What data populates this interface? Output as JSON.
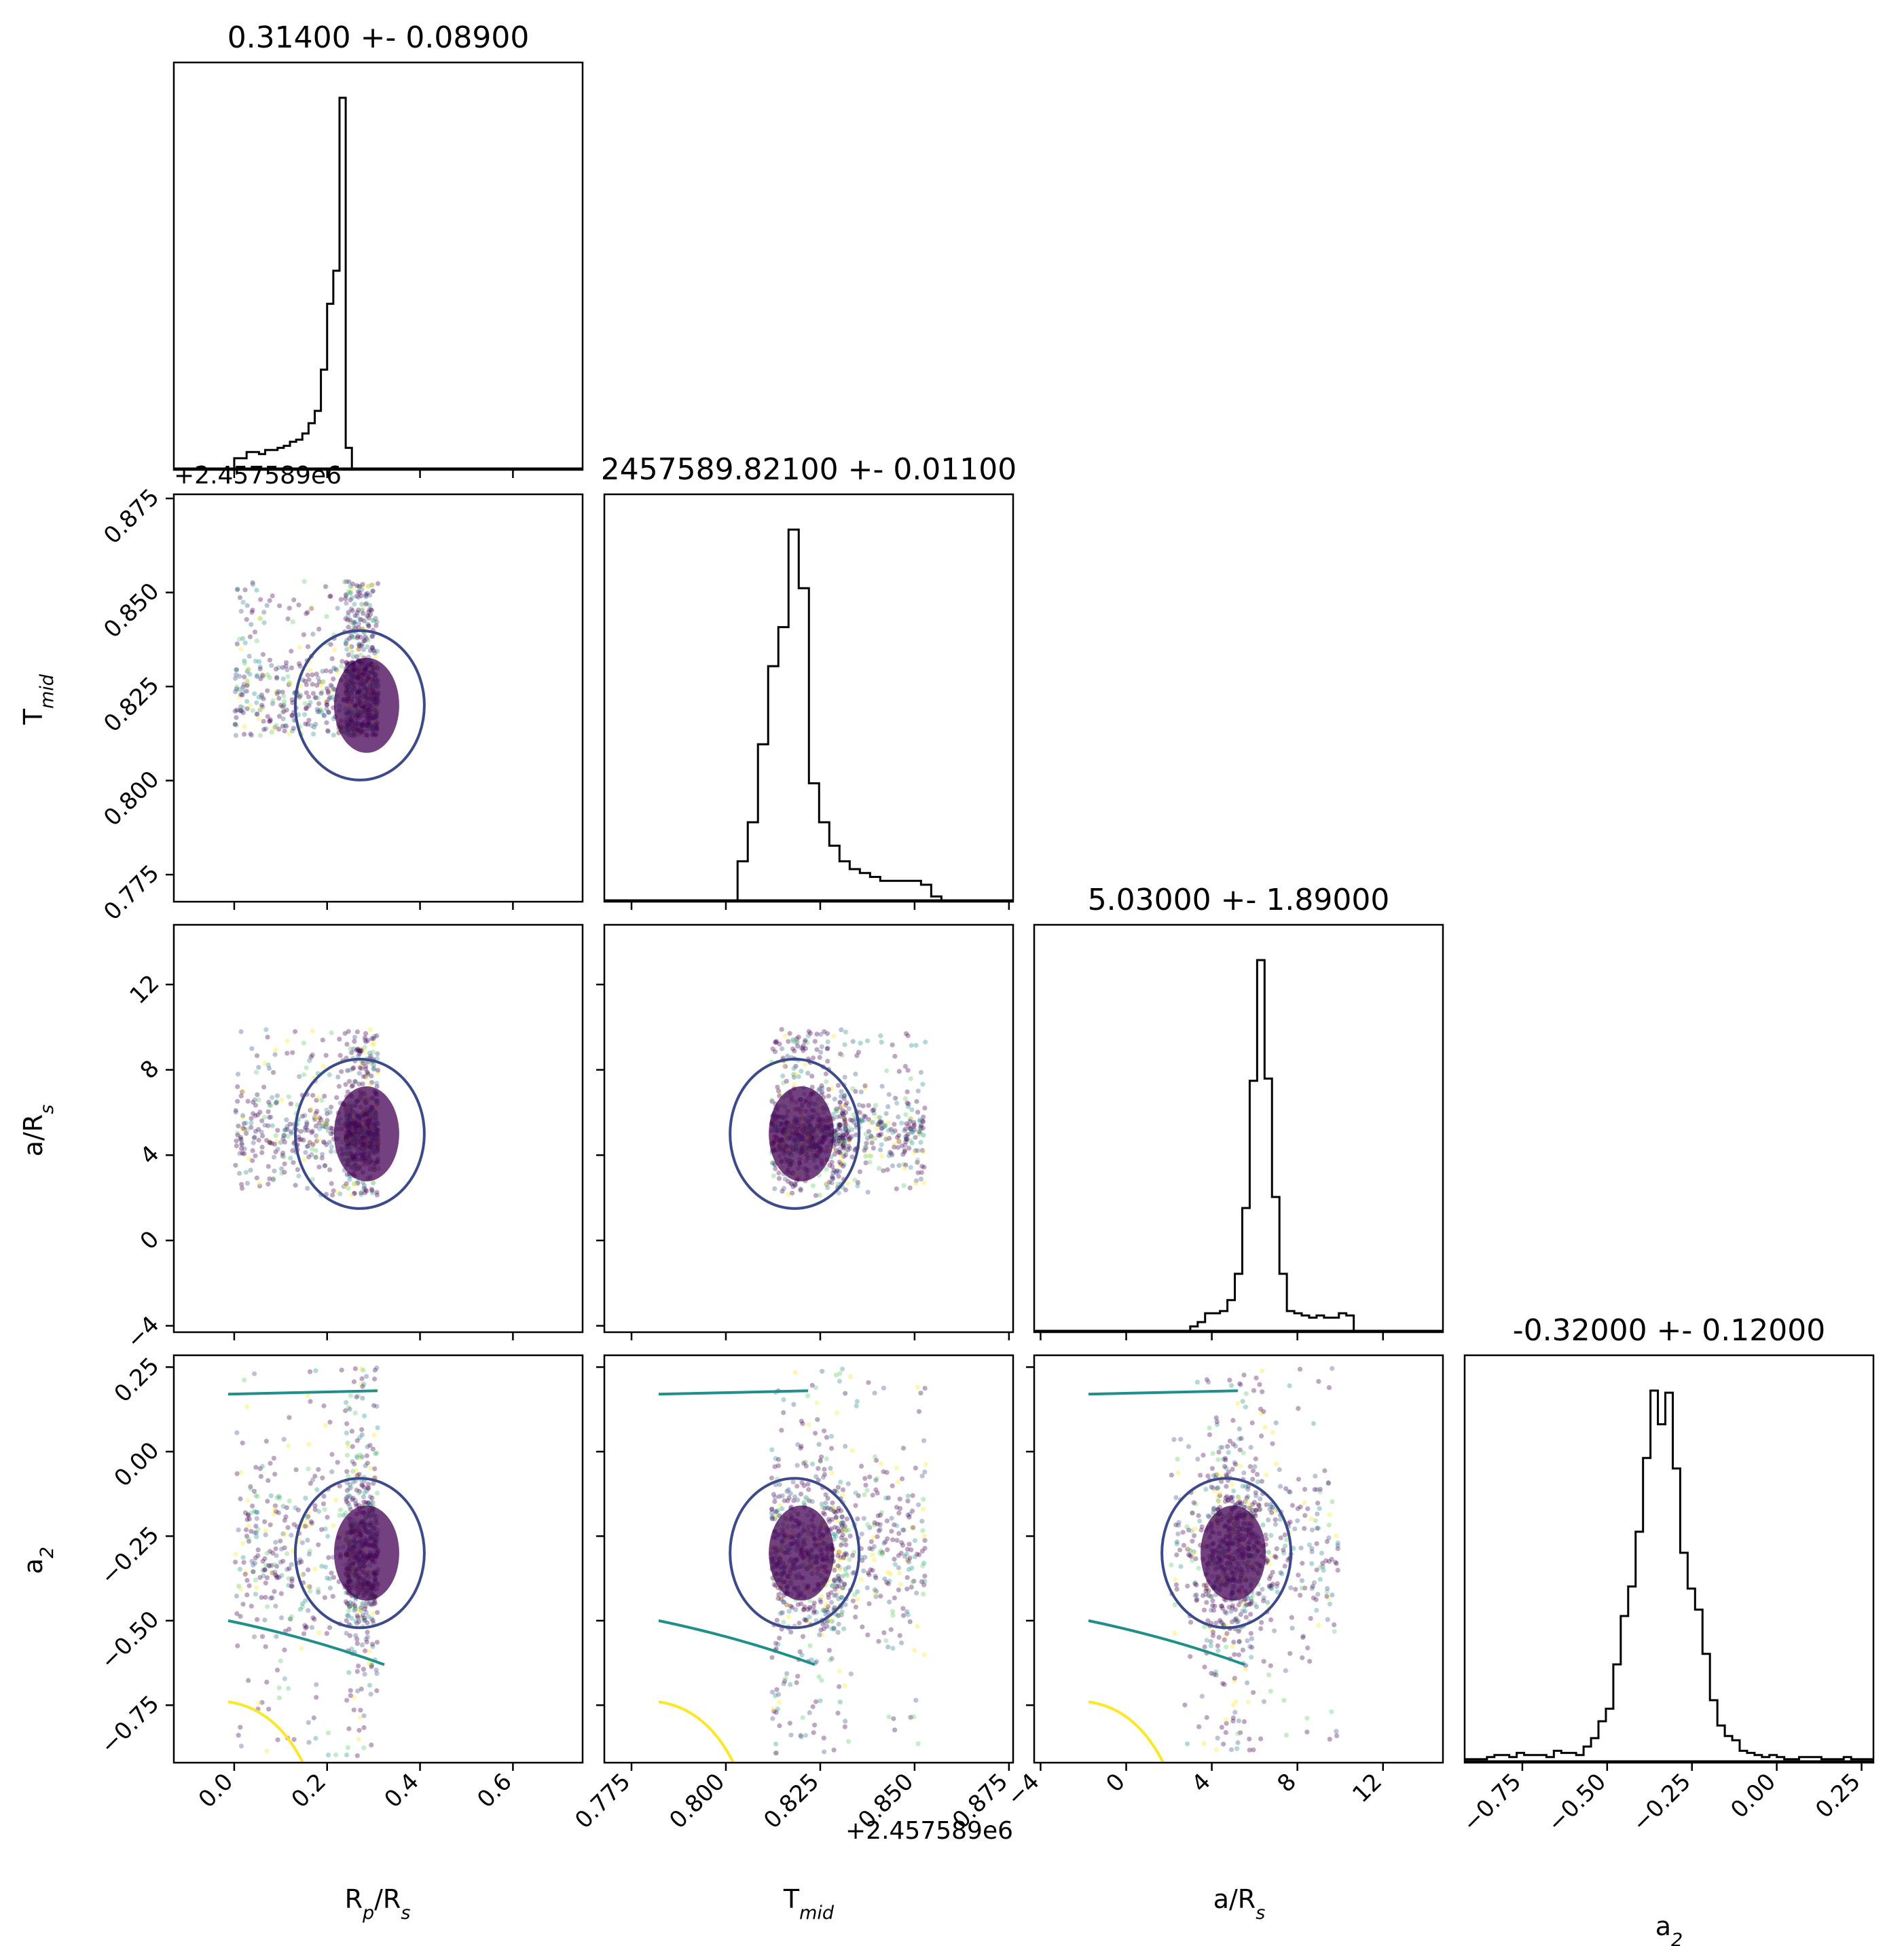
{
  "chart_data": {
    "type": "corner",
    "parameters": [
      {
        "key": "rp",
        "label": "R_p/R_s",
        "title": "0.31400 +- 0.08900",
        "lim": [
          -0.13,
          0.75
        ],
        "ticks": [
          0.0,
          0.2,
          0.4,
          0.6
        ],
        "tick_labels": [
          "0.0",
          "0.2",
          "0.4",
          "0.6"
        ],
        "offset": ""
      },
      {
        "key": "tmid",
        "label": "T_mid",
        "title": "2457589.82100 +- 0.01100",
        "lim": [
          0.7678,
          0.8761
        ],
        "ticks": [
          0.775,
          0.8,
          0.825,
          0.85,
          0.875
        ],
        "tick_labels": [
          "0.775",
          "0.800",
          "0.825",
          "0.850",
          "0.875"
        ],
        "offset": "+2.457589e6"
      },
      {
        "key": "ars",
        "label": "a/R_s",
        "title": "5.03000 +- 1.89000",
        "lim": [
          -4.3,
          14.8
        ],
        "ticks": [
          -4,
          0,
          4,
          8,
          12
        ],
        "tick_labels": [
          "−4",
          "0",
          "4",
          "8",
          "12"
        ],
        "offset": ""
      },
      {
        "key": "a2",
        "label": "a_2",
        "title": "-0.32000 +- 0.12000",
        "lim": [
          -0.92,
          0.285
        ],
        "ticks": [
          -0.75,
          -0.5,
          -0.25,
          0.0,
          0.25
        ],
        "tick_labels": [
          "−0.75",
          "−0.50",
          "−0.25",
          "0.00",
          "0.25"
        ],
        "offset": ""
      }
    ],
    "histograms": [
      {
        "param": "rp",
        "x_range": [
          0.0,
          0.72
        ],
        "bins": 54,
        "counts": [
          5,
          5,
          8,
          8,
          7,
          9,
          9,
          10,
          11,
          13,
          14,
          17,
          22,
          28,
          48,
          80,
          96,
          180,
          10,
          0,
          0,
          0,
          0,
          0,
          0,
          0,
          0,
          0,
          0,
          0,
          0,
          0,
          0,
          0,
          0,
          0,
          0,
          0,
          0,
          0,
          0,
          0,
          0,
          0,
          0,
          0,
          0,
          0,
          0,
          0,
          0,
          0,
          0,
          0
        ]
      },
      {
        "param": "tmid",
        "x_range": [
          0.768,
          0.876
        ],
        "bins": 40,
        "counts": [
          0,
          0,
          0,
          0,
          0,
          0,
          0,
          0,
          0,
          0,
          0,
          0,
          0,
          10,
          20,
          40,
          60,
          70,
          95,
          80,
          30,
          20,
          14,
          10,
          8,
          7,
          6,
          5,
          5,
          5,
          5,
          4,
          1,
          0,
          0,
          0,
          0,
          0,
          0,
          0
        ]
      },
      {
        "param": "ars",
        "x_range": [
          -4.3,
          14.8
        ],
        "bins": 55,
        "counts": [
          0,
          0,
          0,
          0,
          0,
          0,
          0,
          0,
          0,
          0,
          0,
          0,
          0,
          0,
          0,
          0,
          0,
          0,
          0,
          0,
          0,
          2,
          4,
          8,
          8,
          9,
          14,
          26,
          56,
          114,
          169,
          115,
          61,
          26,
          9,
          8,
          7,
          6,
          7,
          6,
          6,
          8,
          7,
          0,
          0,
          0,
          0,
          0,
          0,
          0,
          0,
          0,
          0,
          0,
          0
        ]
      },
      {
        "param": "a2",
        "x_range": [
          -0.92,
          0.285
        ],
        "bins": 55,
        "counts": [
          1,
          1,
          1,
          2,
          3,
          3,
          2,
          4,
          3,
          3,
          3,
          2,
          5,
          4,
          4,
          3,
          7,
          11,
          19,
          25,
          46,
          69,
          83,
          109,
          144,
          176,
          160,
          175,
          139,
          99,
          82,
          72,
          51,
          29,
          17,
          12,
          10,
          5,
          4,
          3,
          2,
          3,
          2,
          1,
          1,
          2,
          2,
          2,
          1,
          1,
          1,
          2,
          1,
          1,
          1
        ]
      }
    ],
    "contour_levels": [
      "inner",
      "mid",
      "outer"
    ],
    "contour_colors": {
      "inner": "#3b4a8a",
      "mid": "#1f8f8a",
      "outer": "#fde725"
    },
    "scatter_colormap": [
      "#440154",
      "#3b528b",
      "#21918c",
      "#5ec962",
      "#fde725"
    ],
    "hist_color": "#000000"
  }
}
